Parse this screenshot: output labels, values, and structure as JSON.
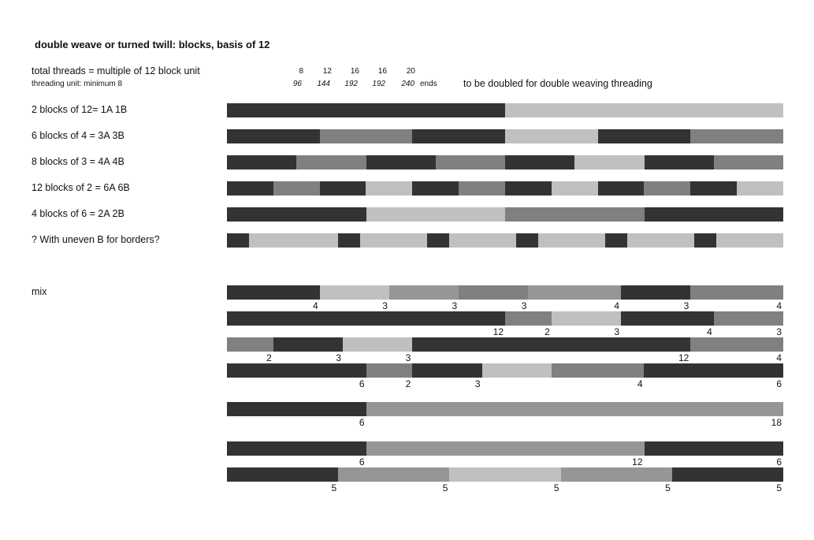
{
  "title": "double weave or turned twill: blocks, basis of 12",
  "header": {
    "total_threads": "total threads  =  multiple of 12 block unit",
    "threading_unit": "threading unit: minimum 8",
    "block_counts": [
      "8",
      "12",
      "16",
      "16",
      "20"
    ],
    "thread_totals": [
      "96",
      "144",
      "192",
      "192",
      "240"
    ],
    "ends_label": "ends",
    "note": "to be doubled for double weaving threading"
  },
  "colors": {
    "dark": "#333333",
    "mid": "#808080",
    "midlight": "#969696",
    "light": "#c0c0c0"
  },
  "rows": [
    {
      "label": "2 blocks of 12= 1A 1B",
      "segments": [
        {
          "units": 12,
          "shade": "dark"
        },
        {
          "units": 12,
          "shade": "light"
        }
      ]
    },
    {
      "label": "6 blocks of 4 = 3A 3B",
      "segments": [
        {
          "units": 4,
          "shade": "dark"
        },
        {
          "units": 4,
          "shade": "mid"
        },
        {
          "units": 4,
          "shade": "dark"
        },
        {
          "units": 4,
          "shade": "light"
        },
        {
          "units": 4,
          "shade": "dark"
        },
        {
          "units": 4,
          "shade": "mid"
        }
      ]
    },
    {
      "label": "8 blocks of 3 = 4A 4B",
      "segments": [
        {
          "units": 3,
          "shade": "dark"
        },
        {
          "units": 3,
          "shade": "mid"
        },
        {
          "units": 3,
          "shade": "dark"
        },
        {
          "units": 3,
          "shade": "mid"
        },
        {
          "units": 3,
          "shade": "dark"
        },
        {
          "units": 3,
          "shade": "light"
        },
        {
          "units": 3,
          "shade": "dark"
        },
        {
          "units": 3,
          "shade": "mid"
        }
      ]
    },
    {
      "label": "12 blocks of 2 = 6A 6B",
      "segments": [
        {
          "units": 2,
          "shade": "dark"
        },
        {
          "units": 2,
          "shade": "mid"
        },
        {
          "units": 2,
          "shade": "dark"
        },
        {
          "units": 2,
          "shade": "light"
        },
        {
          "units": 2,
          "shade": "dark"
        },
        {
          "units": 2,
          "shade": "mid"
        },
        {
          "units": 2,
          "shade": "dark"
        },
        {
          "units": 2,
          "shade": "light"
        },
        {
          "units": 2,
          "shade": "dark"
        },
        {
          "units": 2,
          "shade": "mid"
        },
        {
          "units": 2,
          "shade": "dark"
        },
        {
          "units": 2,
          "shade": "light"
        }
      ]
    },
    {
      "label": "4 blocks of 6 = 2A 2B",
      "segments": [
        {
          "units": 6,
          "shade": "dark"
        },
        {
          "units": 6,
          "shade": "light"
        },
        {
          "units": 6,
          "shade": "mid"
        },
        {
          "units": 6,
          "shade": "dark"
        }
      ]
    },
    {
      "label": "? With uneven B for borders?",
      "segments": [
        {
          "units": 1,
          "shade": "dark"
        },
        {
          "units": 4,
          "shade": "light"
        },
        {
          "units": 1,
          "shade": "dark",
          "mark": "0"
        },
        {
          "units": 3,
          "shade": "light"
        },
        {
          "units": 1,
          "shade": "dark",
          "mark": "0"
        },
        {
          "units": 3,
          "shade": "light"
        },
        {
          "units": 1,
          "shade": "dark",
          "mark": "0"
        },
        {
          "units": 3,
          "shade": "light"
        },
        {
          "units": 1,
          "shade": "dark",
          "mark": "0"
        },
        {
          "units": 3,
          "shade": "light"
        },
        {
          "units": 1,
          "shade": "dark",
          "mark": "0"
        },
        {
          "units": 3,
          "shade": "light"
        }
      ]
    }
  ],
  "mix_label": "mix",
  "mix_rows": [
    {
      "segments": [
        {
          "units": 4,
          "shade": "dark",
          "count": "4"
        },
        {
          "units": 3,
          "shade": "light",
          "count": "3"
        },
        {
          "units": 3,
          "shade": "midlight",
          "count": "3"
        },
        {
          "units": 3,
          "shade": "mid",
          "count": "3"
        },
        {
          "units": 4,
          "shade": "midlight",
          "count": "4"
        },
        {
          "units": 3,
          "shade": "dark",
          "count": "3"
        },
        {
          "units": 4,
          "shade": "mid",
          "count": "4"
        }
      ]
    },
    {
      "segments": [
        {
          "units": 12,
          "shade": "dark",
          "count": "12"
        },
        {
          "units": 2,
          "shade": "mid",
          "count": "2"
        },
        {
          "units": 3,
          "shade": "light",
          "count": "3"
        },
        {
          "units": 4,
          "shade": "dark",
          "count": "4"
        },
        {
          "units": 3,
          "shade": "mid",
          "count": "3"
        }
      ]
    },
    {
      "segments": [
        {
          "units": 2,
          "shade": "mid",
          "count": "2"
        },
        {
          "units": 3,
          "shade": "dark",
          "count": "3"
        },
        {
          "units": 3,
          "shade": "light",
          "count": "3"
        },
        {
          "units": 12,
          "shade": "dark",
          "count": "12"
        },
        {
          "units": 4,
          "shade": "mid",
          "count": "4"
        }
      ]
    },
    {
      "segments": [
        {
          "units": 6,
          "shade": "dark",
          "count": "6"
        },
        {
          "units": 2,
          "shade": "mid",
          "count": "2"
        },
        {
          "units": 3,
          "shade": "dark",
          "count": "3"
        },
        {
          "units": 3,
          "shade": "light",
          "count": ""
        },
        {
          "units": 4,
          "shade": "mid",
          "count": "4"
        },
        {
          "units": 6,
          "shade": "dark",
          "count": "6"
        }
      ]
    },
    {
      "segments": [
        {
          "units": 6,
          "shade": "dark",
          "count": "6"
        },
        {
          "units": 18,
          "shade": "midlight",
          "count": "18"
        }
      ]
    },
    {
      "segments": [
        {
          "units": 6,
          "shade": "dark",
          "count": "6"
        },
        {
          "units": 12,
          "shade": "midlight",
          "count": "12"
        },
        {
          "units": 6,
          "shade": "dark",
          "count": "6"
        }
      ]
    },
    {
      "segments": [
        {
          "units": 5,
          "shade": "dark",
          "count": "5"
        },
        {
          "units": 5,
          "shade": "midlight",
          "count": "5"
        },
        {
          "units": 5,
          "shade": "light",
          "count": "5"
        },
        {
          "units": 5,
          "shade": "midlight",
          "count": "5"
        },
        {
          "units": 5,
          "shade": "dark",
          "count": "5"
        }
      ]
    }
  ]
}
